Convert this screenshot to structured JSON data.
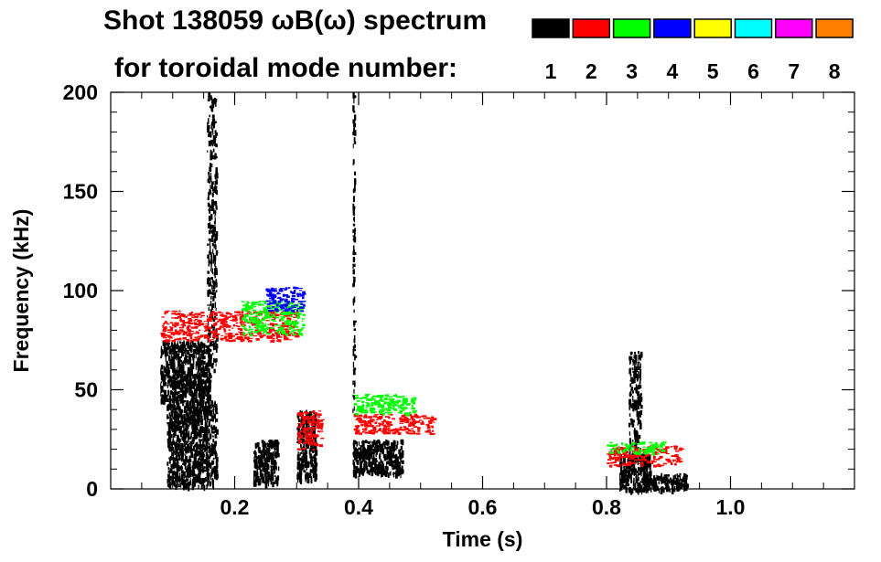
{
  "header": {
    "title_line1": "Shot 138059 ωB(ω) spectrum",
    "title_line2": "for toroidal mode number:"
  },
  "chart_data": {
    "type": "heatmap",
    "title": "Shot 138059 ωB(ω) spectrum for toroidal mode number",
    "xlabel": "Time (s)",
    "ylabel": "Frequency (kHz)",
    "xlim": [
      0.0,
      1.2
    ],
    "ylim": [
      0,
      200
    ],
    "x_ticks": [
      0.2,
      0.4,
      0.6,
      0.8,
      1.0
    ],
    "x_tick_labels": [
      "0.2",
      "0.4",
      "0.6",
      "0.8",
      "1.0"
    ],
    "y_ticks": [
      0,
      50,
      100,
      150,
      200
    ],
    "y_tick_labels": [
      "0",
      "50",
      "100",
      "150",
      "200"
    ],
    "legend": {
      "placement": "top-right",
      "modes": [
        {
          "n": "1",
          "color": "#000000"
        },
        {
          "n": "2",
          "color": "#ff0000"
        },
        {
          "n": "3",
          "color": "#00ff00"
        },
        {
          "n": "4",
          "color": "#0000ff"
        },
        {
          "n": "5",
          "color": "#ffff00"
        },
        {
          "n": "6",
          "color": "#00ffff"
        },
        {
          "n": "7",
          "color": "#ff00ff"
        },
        {
          "n": "8",
          "color": "#ff8000"
        }
      ]
    },
    "features": [
      {
        "n": 1,
        "kind": "blob",
        "t0": 0.08,
        "t1": 0.16,
        "f0": 45,
        "f1": 75
      },
      {
        "n": 1,
        "kind": "blob",
        "t0": 0.09,
        "t1": 0.17,
        "f0": 2,
        "f1": 45
      },
      {
        "n": 1,
        "kind": "blob",
        "t0": 0.23,
        "t1": 0.27,
        "f0": 3,
        "f1": 25
      },
      {
        "n": 1,
        "kind": "blob",
        "t0": 0.3,
        "t1": 0.33,
        "f0": 5,
        "f1": 40
      },
      {
        "n": 1,
        "kind": "blob",
        "t0": 0.39,
        "t1": 0.47,
        "f0": 8,
        "f1": 25
      },
      {
        "n": 1,
        "kind": "blob",
        "t0": 0.82,
        "t1": 0.87,
        "f0": 0,
        "f1": 18
      },
      {
        "n": 1,
        "kind": "spike",
        "t0": 0.835,
        "t1": 0.855,
        "f0": 15,
        "f1": 70
      },
      {
        "n": 1,
        "kind": "blob",
        "t0": 0.86,
        "t1": 0.93,
        "f0": 0,
        "f1": 8
      },
      {
        "n": 1,
        "kind": "spike",
        "t0": 0.155,
        "t1": 0.17,
        "f0": 60,
        "f1": 200
      },
      {
        "n": 1,
        "kind": "spike",
        "t0": 0.39,
        "t1": 0.393,
        "f0": 40,
        "f1": 200
      },
      {
        "n": 2,
        "kind": "band",
        "t0": 0.08,
        "t1": 0.3,
        "f0": 75,
        "f1": 90
      },
      {
        "n": 2,
        "kind": "band",
        "t0": 0.3,
        "t1": 0.34,
        "f0": 20,
        "f1": 40
      },
      {
        "n": 2,
        "kind": "band",
        "t0": 0.39,
        "t1": 0.52,
        "f0": 28,
        "f1": 38
      },
      {
        "n": 2,
        "kind": "band",
        "t0": 0.8,
        "t1": 0.92,
        "f0": 12,
        "f1": 22
      },
      {
        "n": 3,
        "kind": "band",
        "t0": 0.21,
        "t1": 0.31,
        "f0": 78,
        "f1": 95
      },
      {
        "n": 3,
        "kind": "band",
        "t0": 0.39,
        "t1": 0.49,
        "f0": 38,
        "f1": 48
      },
      {
        "n": 3,
        "kind": "band",
        "t0": 0.8,
        "t1": 0.89,
        "f0": 18,
        "f1": 24
      },
      {
        "n": 4,
        "kind": "band",
        "t0": 0.25,
        "t1": 0.31,
        "f0": 90,
        "f1": 102
      }
    ]
  }
}
